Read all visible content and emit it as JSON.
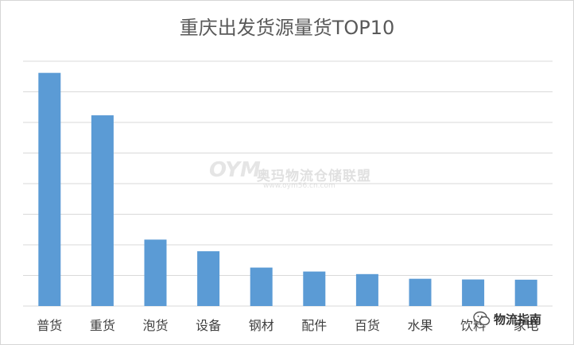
{
  "chart_data": {
    "type": "bar",
    "title": "重庆出发货源量货TOP10",
    "categories": [
      "普货",
      "重货",
      "泡货",
      "设备",
      "钢材",
      "配件",
      "百货",
      "水果",
      "饮料",
      "家电"
    ],
    "values": [
      1000,
      818,
      285,
      235,
      165,
      148,
      137,
      117,
      114,
      113
    ],
    "ylim": [
      0,
      1050
    ],
    "grid": true,
    "legend": "none",
    "bar_color": "#5B9BD5",
    "gridline_color": "#d9d9d9"
  },
  "watermark": {
    "logo": "OYM",
    "name": "奥玛物流仓储联盟",
    "url": "www.oym56.cn.com"
  },
  "badge": {
    "icon": "wechat-icon",
    "text": "物流指南"
  }
}
